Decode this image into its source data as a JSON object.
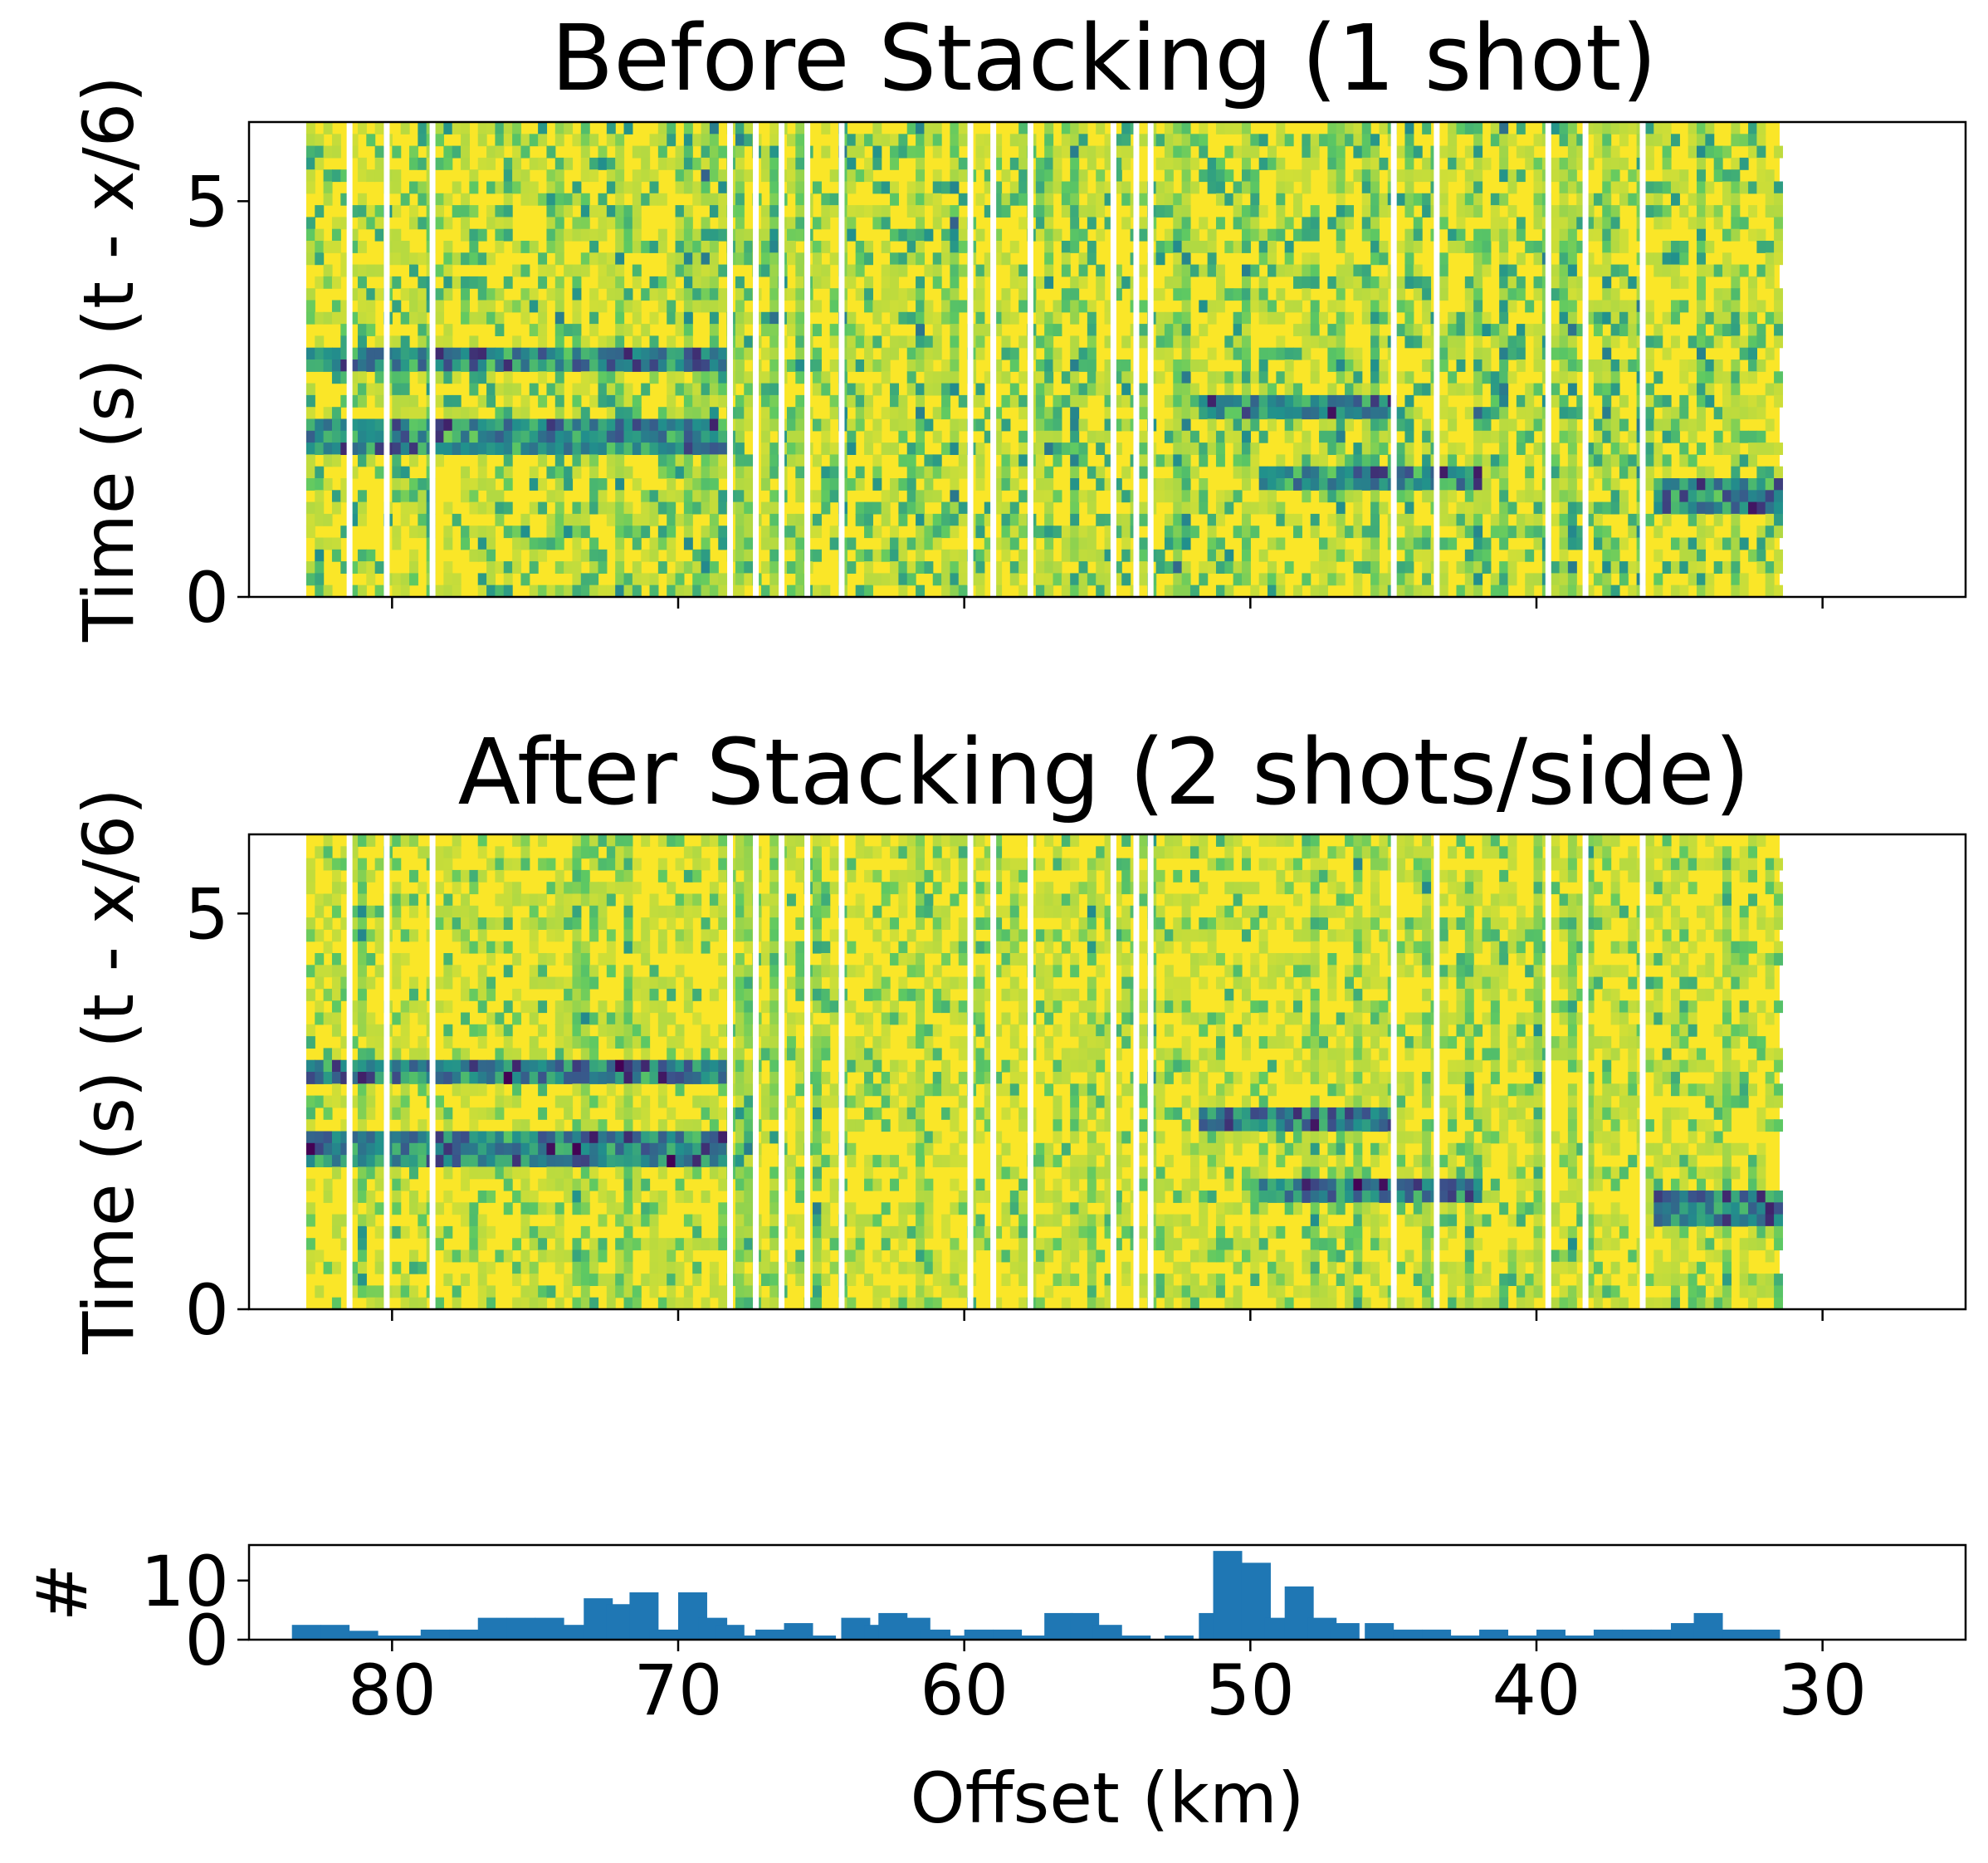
{
  "figure": {
    "panel_top_title": "Before Stacking (1 shot)",
    "panel_mid_title": "After Stacking (2 shots/side)",
    "ylabel_time": "Time (s) (t - x/6)",
    "ylabel_count": "#",
    "xlabel": "Offset (km)"
  },
  "chart_data": [
    {
      "type": "heatmap",
      "title": "Before Stacking (1 shot)",
      "xlabel": "",
      "ylabel": "Time (s) (t - x/6)",
      "xlim": [
        85,
        25
      ],
      "ylim": [
        0,
        6
      ],
      "x_ticks": [
        80,
        70,
        60,
        50,
        40,
        30
      ],
      "y_ticks": [
        0,
        5
      ],
      "y_tick_labels": [
        "0",
        "5"
      ],
      "data_extent_x": [
        83,
        31.5
      ],
      "trace_gaps_km": [
        81.5,
        80.2,
        78.6,
        68.2,
        67.3,
        66.4,
        65.5,
        64.3,
        59.8,
        59.0,
        57.7,
        54.8,
        54.0,
        53.5,
        45.0,
        43.5,
        39.6,
        38.3,
        36.3
      ],
      "colormap": "viridis",
      "high_amplitude_bands": [
        {
          "x_from": 83,
          "x_to": 68.5,
          "t": 2.0
        },
        {
          "x_from": 83,
          "x_to": 68.5,
          "t": 3.0
        },
        {
          "x_from": 52,
          "x_to": 45,
          "t": 2.4
        },
        {
          "x_from": 50,
          "x_to": 42,
          "t": 1.5
        },
        {
          "x_from": 36,
          "x_to": 31.5,
          "t": 1.3
        }
      ]
    },
    {
      "type": "heatmap",
      "title": "After Stacking (2 shots/side)",
      "xlabel": "",
      "ylabel": "Time (s) (t - x/6)",
      "xlim": [
        85,
        25
      ],
      "ylim": [
        0,
        6
      ],
      "x_ticks": [
        80,
        70,
        60,
        50,
        40,
        30
      ],
      "y_ticks": [
        0,
        5
      ],
      "y_tick_labels": [
        "0",
        "5"
      ],
      "data_extent_x": [
        83,
        31.5
      ],
      "trace_gaps_km": [
        81.5,
        80.2,
        78.6,
        68.2,
        67.3,
        66.4,
        65.5,
        64.3,
        59.8,
        59.0,
        57.7,
        54.8,
        54.0,
        53.5,
        45.0,
        43.5,
        39.6,
        38.3,
        36.3
      ],
      "colormap": "viridis",
      "high_amplitude_bands": [
        {
          "x_from": 83,
          "x_to": 68.5,
          "t": 2.0
        },
        {
          "x_from": 83,
          "x_to": 68.5,
          "t": 3.0
        },
        {
          "x_from": 52,
          "x_to": 45,
          "t": 2.4
        },
        {
          "x_from": 50,
          "x_to": 42,
          "t": 1.5
        },
        {
          "x_from": 36,
          "x_to": 31.5,
          "t": 1.3
        }
      ]
    },
    {
      "type": "bar",
      "title": "",
      "xlabel": "Offset (km)",
      "ylabel": "#",
      "xlim": [
        85,
        25
      ],
      "ylim": [
        0,
        16
      ],
      "x_ticks": [
        80,
        70,
        60,
        50,
        40,
        30
      ],
      "x_tick_labels": [
        "80",
        "70",
        "60",
        "50",
        "40",
        "30"
      ],
      "y_ticks": [
        0,
        10
      ],
      "y_tick_labels": [
        "0",
        "10"
      ],
      "bin_width": 1,
      "color": "#1f77b4",
      "bins": [
        {
          "x": 83,
          "value": 2.5
        },
        {
          "x": 82,
          "value": 2.5
        },
        {
          "x": 81,
          "value": 1.5
        },
        {
          "x": 80,
          "value": 0.7
        },
        {
          "x": 79,
          "value": 0.7
        },
        {
          "x": 78.5,
          "value": 1.7
        },
        {
          "x": 77.5,
          "value": 1.7
        },
        {
          "x": 76.5,
          "value": 3.7
        },
        {
          "x": 75.5,
          "value": 3.7
        },
        {
          "x": 74.5,
          "value": 3.7
        },
        {
          "x": 73.5,
          "value": 2.5
        },
        {
          "x": 72.8,
          "value": 7
        },
        {
          "x": 72,
          "value": 6
        },
        {
          "x": 71.2,
          "value": 8
        },
        {
          "x": 70.5,
          "value": 1.7
        },
        {
          "x": 69.5,
          "value": 8
        },
        {
          "x": 68.8,
          "value": 3.7
        },
        {
          "x": 68.2,
          "value": 2.5
        },
        {
          "x": 67.5,
          "value": 0.7
        },
        {
          "x": 66.8,
          "value": 1.7
        },
        {
          "x": 65.8,
          "value": 2.8
        },
        {
          "x": 65,
          "value": 0.7
        },
        {
          "x": 63.8,
          "value": 3.7
        },
        {
          "x": 63,
          "value": 2.5
        },
        {
          "x": 62.5,
          "value": 4.5
        },
        {
          "x": 61.7,
          "value": 3.7
        },
        {
          "x": 61,
          "value": 1.7
        },
        {
          "x": 60.2,
          "value": 0.7
        },
        {
          "x": 59.5,
          "value": 1.7
        },
        {
          "x": 58.5,
          "value": 1.7
        },
        {
          "x": 57.5,
          "value": 0.7
        },
        {
          "x": 56.7,
          "value": 4.5
        },
        {
          "x": 55.8,
          "value": 4.5
        },
        {
          "x": 55,
          "value": 2.5
        },
        {
          "x": 54,
          "value": 0.7
        },
        {
          "x": 52.5,
          "value": 0.7
        },
        {
          "x": 51.3,
          "value": 4.5
        },
        {
          "x": 50.8,
          "value": 15
        },
        {
          "x": 49.8,
          "value": 13
        },
        {
          "x": 49,
          "value": 3.7
        },
        {
          "x": 48.3,
          "value": 9
        },
        {
          "x": 47.5,
          "value": 3.7
        },
        {
          "x": 46.7,
          "value": 2.8
        },
        {
          "x": 45.5,
          "value": 2.8
        },
        {
          "x": 44.5,
          "value": 1.7
        },
        {
          "x": 43.5,
          "value": 1.7
        },
        {
          "x": 42.5,
          "value": 0.7
        },
        {
          "x": 41.5,
          "value": 1.7
        },
        {
          "x": 40.5,
          "value": 0.7
        },
        {
          "x": 39.5,
          "value": 1.7
        },
        {
          "x": 38.5,
          "value": 0.7
        },
        {
          "x": 37.5,
          "value": 1.7
        },
        {
          "x": 36.5,
          "value": 1.7
        },
        {
          "x": 35.5,
          "value": 1.7
        },
        {
          "x": 34.8,
          "value": 2.8
        },
        {
          "x": 34,
          "value": 4.5
        },
        {
          "x": 33,
          "value": 1.7
        },
        {
          "x": 32,
          "value": 1.7
        }
      ]
    }
  ]
}
